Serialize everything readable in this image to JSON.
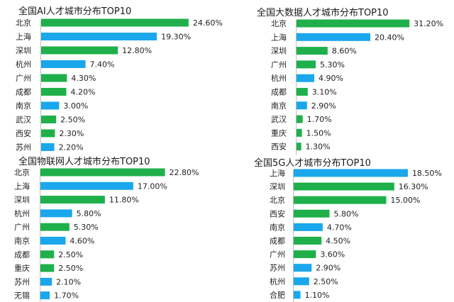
{
  "colors": {
    "green": "#1FB04B",
    "blue": "#1AA7EC"
  },
  "chart_data": [
    {
      "type": "bar",
      "orientation": "horizontal",
      "title": "全国AI人才城市分布TOP10",
      "categories": [
        "北京",
        "上海",
        "深圳",
        "杭州",
        "广州",
        "成都",
        "南京",
        "武汉",
        "西安",
        "苏州"
      ],
      "values": [
        24.6,
        19.3,
        12.8,
        7.4,
        4.3,
        4.2,
        3.0,
        2.5,
        2.3,
        2.2
      ],
      "labels": [
        "24.60%",
        "19.30%",
        "12.80%",
        "7.40%",
        "4.30%",
        "4.20%",
        "3.00%",
        "2.50%",
        "2.30%",
        "2.20%"
      ],
      "bar_colors": [
        "green",
        "blue",
        "green",
        "blue",
        "green",
        "green",
        "blue",
        "green",
        "green",
        "blue"
      ],
      "unit": "%"
    },
    {
      "type": "bar",
      "orientation": "horizontal",
      "title": "全国大数据人才城市分布TOP10",
      "categories": [
        "北京",
        "上海",
        "深圳",
        "广州",
        "杭州",
        "成都",
        "南京",
        "武汉",
        "重庆",
        "西安"
      ],
      "values": [
        31.2,
        20.4,
        8.6,
        5.3,
        4.9,
        3.1,
        2.9,
        1.7,
        1.5,
        1.3
      ],
      "labels": [
        "31.20%",
        "20.40%",
        "8.60%",
        "5.30%",
        "4.90%",
        "3.10%",
        "2.90%",
        "1.70%",
        "1.50%",
        "1.30%"
      ],
      "bar_colors": [
        "green",
        "blue",
        "green",
        "green",
        "blue",
        "green",
        "blue",
        "green",
        "green",
        "green"
      ],
      "unit": "%"
    },
    {
      "type": "bar",
      "orientation": "horizontal",
      "title": "全国物联网人才城市分布TOP10",
      "categories": [
        "北京",
        "上海",
        "深圳",
        "杭州",
        "广州",
        "南京",
        "成都",
        "重庆",
        "苏州",
        "无锡"
      ],
      "values": [
        22.8,
        17.0,
        11.8,
        5.8,
        5.3,
        4.6,
        2.5,
        2.5,
        2.1,
        1.7
      ],
      "labels": [
        "22.80%",
        "17.00%",
        "11.80%",
        "5.80%",
        "5.30%",
        "4.60%",
        "2.50%",
        "2.50%",
        "2.10%",
        "1.70%"
      ],
      "bar_colors": [
        "green",
        "blue",
        "green",
        "blue",
        "green",
        "blue",
        "green",
        "green",
        "blue",
        "blue"
      ],
      "unit": "%"
    },
    {
      "type": "bar",
      "orientation": "horizontal",
      "title": "全国5G人才城市分布TOP10",
      "categories": [
        "上海",
        "深圳",
        "北京",
        "西安",
        "南京",
        "成都",
        "广州",
        "苏州",
        "杭州",
        "合肥"
      ],
      "values": [
        18.5,
        16.3,
        15.0,
        5.8,
        4.7,
        4.5,
        3.6,
        2.9,
        2.5,
        1.1
      ],
      "labels": [
        "18.50%",
        "16.30%",
        "15.00%",
        "5.80%",
        "4.70%",
        "4.50%",
        "3.60%",
        "2.90%",
        "2.50%",
        "1.10%"
      ],
      "bar_colors": [
        "blue",
        "green",
        "green",
        "green",
        "blue",
        "green",
        "green",
        "blue",
        "blue",
        "blue"
      ],
      "unit": "%"
    }
  ]
}
